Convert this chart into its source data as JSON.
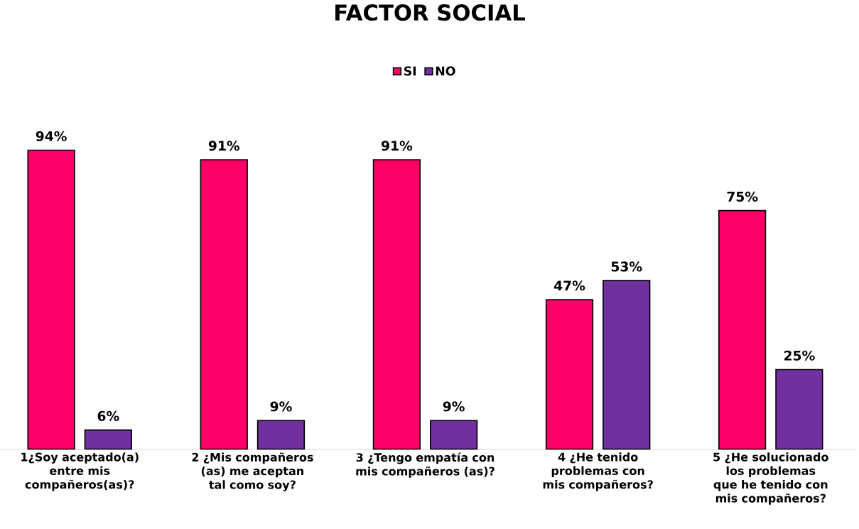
{
  "chart_data": {
    "type": "bar",
    "title": "FACTOR SOCIAL",
    "categories": [
      "1¿Soy aceptado(a) entre mis compañeros(as)?",
      "2 ¿Mis compañeros (as) me aceptan tal como soy?",
      "3 ¿Tengo empatía con mis compañeros (as)?",
      "4 ¿He tenido problemas con mis compañeros?",
      "5 ¿He solucionado los problemas que he tenido con mis compañeros?"
    ],
    "series": [
      {
        "name": "SI",
        "color": "#ff0066",
        "values": [
          94,
          91,
          91,
          47,
          75
        ],
        "value_labels": [
          "94%",
          "91%",
          "91%",
          "47%",
          "75%"
        ]
      },
      {
        "name": "NO",
        "color": "#7030a0",
        "values": [
          6,
          9,
          9,
          53,
          25
        ],
        "value_labels": [
          "6%",
          "9%",
          "9%",
          "53%",
          "25%"
        ]
      }
    ],
    "legend": "top"
  }
}
